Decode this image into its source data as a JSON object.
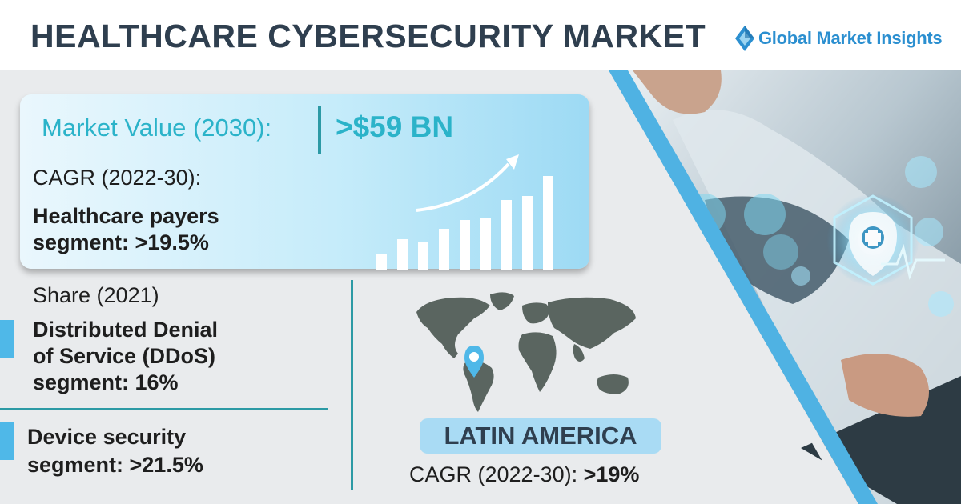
{
  "header": {
    "title": "HEALTHCARE CYBERSECURITY MARKET",
    "brand": "Global Market Insights",
    "brand_icon": "diamond-logo-icon",
    "brand_color": "#2b8fd0"
  },
  "market_value": {
    "label": "Market Value (2030):",
    "value": ">$59 BN"
  },
  "cagr": {
    "label": "CAGR (2022-30):",
    "text_line1": "Healthcare payers",
    "text_line2": "segment: >19.5%"
  },
  "share": {
    "label": "Share (2021)",
    "text_line1": "Distributed Denial",
    "text_line2": "of Service (DDoS)",
    "text_line3": "segment: 16%"
  },
  "device": {
    "text_line1": "Device security",
    "text_line2": "segment: >21.5%"
  },
  "region": {
    "name": "LATIN AMERICA",
    "cagr_label": "CAGR (2022-30): ",
    "cagr_value": ">19%"
  },
  "colors": {
    "accent_teal": "#2bb3c9",
    "divider": "#2c9aa5",
    "tab_blue": "#4fb8e8",
    "title_dark": "#2f3f4f"
  },
  "icons": [
    "growth-bars-icon",
    "up-arrow-icon",
    "world-map-icon",
    "location-pin-icon",
    "medical-shield-icon"
  ]
}
